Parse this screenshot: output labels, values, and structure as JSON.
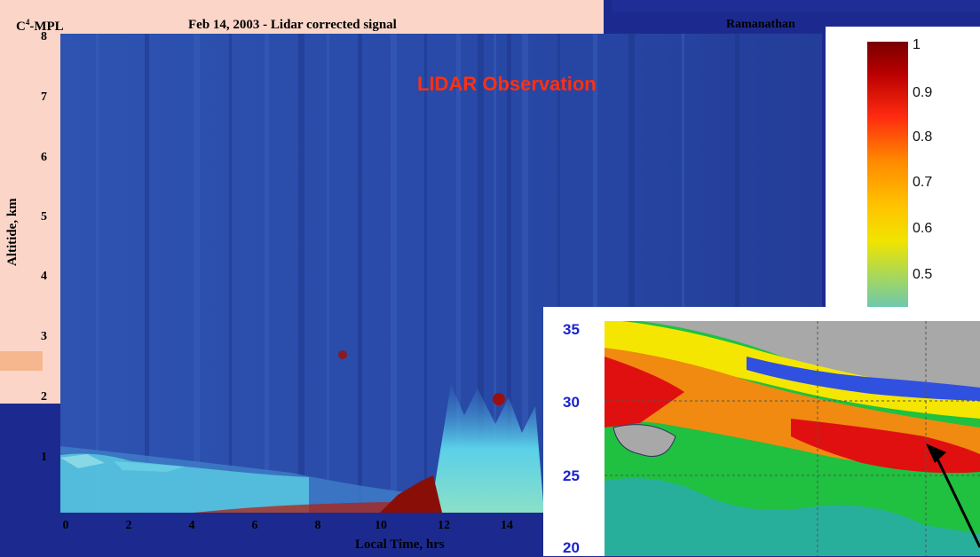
{
  "header": {
    "instrument": "C",
    "instrument_sup": "4",
    "instrument_suffix": "-MPL",
    "title": "Feb 14, 2003 - Lidar corrected signal",
    "author": "Ramanathan"
  },
  "chart_data": [
    {
      "type": "heatmap",
      "title": "Feb 14, 2003 - Lidar corrected signal",
      "annotation": "LIDAR Observation",
      "xlabel": "Local Time, hrs",
      "ylabel": "Altitide, km",
      "xlim": [
        0,
        15.5
      ],
      "ylim": [
        0,
        8
      ],
      "x_ticks": [
        "0",
        "2",
        "4",
        "6",
        "8",
        "10",
        "12",
        "14"
      ],
      "y_ticks": [
        "1",
        "2",
        "3",
        "4",
        "5",
        "6",
        "7",
        "8"
      ],
      "colorbar": {
        "ticks": [
          "1",
          "0.9",
          "0.8",
          "0.7",
          "0.6",
          "0.5"
        ],
        "colors": [
          "#7a0000",
          "#d40000",
          "#ff3a10",
          "#ff8a00",
          "#ffc400",
          "#f2e600",
          "#a8d85a",
          "#6cc8b0"
        ]
      },
      "colors": {
        "background": "#2a4ba8",
        "low": "#1a2f8a",
        "mid": "#5ad0e8",
        "high": "#a01010"
      }
    },
    {
      "type": "heatmap",
      "ylabel": "",
      "y_ticks": [
        "35",
        "30",
        "25",
        "20"
      ],
      "colors": {
        "land": "#a8a8a8",
        "high": "#e01010",
        "mid": "#f4e600",
        "low": "#20c040",
        "lowest": "#3050e0"
      }
    }
  ]
}
